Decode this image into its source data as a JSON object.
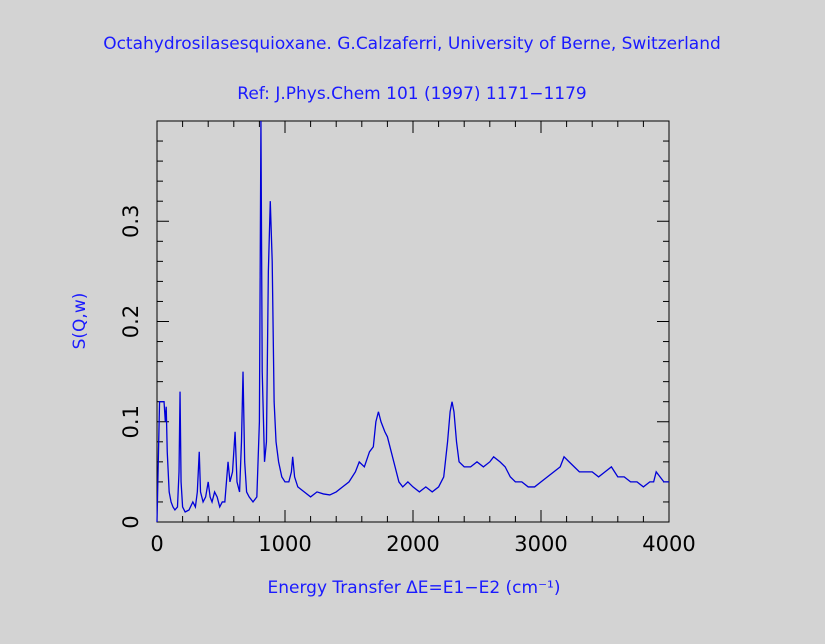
{
  "chart_data": {
    "type": "line",
    "title": "Octahydrosilasesquioxane. G.Calzaferri, University of Berne, Switzerland",
    "subtitle": "Ref: J.Phys.Chem 101 (1997) 1171−1179",
    "xlabel": "Energy Transfer ΔE=E1−E2 (cm⁻¹)",
    "ylabel": "S(Q,w)",
    "color": "#0000d8",
    "xlim": [
      0,
      4000
    ],
    "ylim": [
      0,
      0.4
    ],
    "xticks": [
      0,
      1000,
      2000,
      3000,
      4000
    ],
    "yticks": [
      0,
      0.1,
      0.2,
      0.3
    ],
    "xminorticks": [
      200,
      400,
      600,
      800,
      1200,
      1400,
      1600,
      1800,
      2200,
      2400,
      2600,
      2800,
      3200,
      3400,
      3600,
      3800
    ],
    "yminorticks": [
      0.02,
      0.04,
      0.06,
      0.08,
      0.12,
      0.14,
      0.16,
      0.18,
      0.22,
      0.24,
      0.26,
      0.28,
      0.32,
      0.34,
      0.36,
      0.38
    ],
    "x": [
      0,
      10,
      20,
      40,
      55,
      65,
      72,
      80,
      95,
      110,
      125,
      140,
      160,
      172,
      180,
      188,
      200,
      220,
      250,
      280,
      300,
      315,
      330,
      340,
      360,
      380,
      400,
      415,
      430,
      450,
      470,
      490,
      510,
      530,
      555,
      570,
      590,
      610,
      625,
      645,
      660,
      672,
      685,
      700,
      720,
      750,
      780,
      800,
      812,
      822,
      840,
      855,
      870,
      885,
      900,
      915,
      930,
      950,
      975,
      1000,
      1030,
      1050,
      1060,
      1075,
      1100,
      1150,
      1200,
      1250,
      1300,
      1350,
      1400,
      1450,
      1500,
      1550,
      1580,
      1620,
      1660,
      1690,
      1710,
      1730,
      1750,
      1780,
      1800,
      1830,
      1860,
      1890,
      1920,
      1960,
      2000,
      2050,
      2100,
      2150,
      2200,
      2240,
      2270,
      2290,
      2305,
      2320,
      2340,
      2360,
      2400,
      2450,
      2500,
      2550,
      2600,
      2630,
      2680,
      2720,
      2760,
      2800,
      2850,
      2900,
      2950,
      3000,
      3050,
      3100,
      3150,
      3180,
      3220,
      3260,
      3300,
      3350,
      3400,
      3450,
      3500,
      3550,
      3600,
      3650,
      3700,
      3750,
      3800,
      3850,
      3880,
      3900,
      3930,
      3960,
      4000
    ],
    "values": [
      0,
      0.06,
      0.12,
      0.12,
      0.12,
      0.1,
      0.115,
      0.07,
      0.03,
      0.02,
      0.015,
      0.012,
      0.015,
      0.05,
      0.13,
      0.04,
      0.015,
      0.01,
      0.012,
      0.02,
      0.015,
      0.03,
      0.07,
      0.03,
      0.02,
      0.025,
      0.04,
      0.025,
      0.02,
      0.03,
      0.025,
      0.015,
      0.02,
      0.02,
      0.06,
      0.04,
      0.05,
      0.09,
      0.04,
      0.03,
      0.08,
      0.15,
      0.06,
      0.03,
      0.025,
      0.02,
      0.025,
      0.1,
      0.4,
      0.15,
      0.06,
      0.08,
      0.25,
      0.32,
      0.26,
      0.12,
      0.08,
      0.06,
      0.045,
      0.04,
      0.04,
      0.05,
      0.065,
      0.045,
      0.035,
      0.03,
      0.025,
      0.03,
      0.028,
      0.027,
      0.03,
      0.035,
      0.04,
      0.05,
      0.06,
      0.055,
      0.07,
      0.075,
      0.1,
      0.11,
      0.1,
      0.09,
      0.085,
      0.07,
      0.055,
      0.04,
      0.035,
      0.04,
      0.035,
      0.03,
      0.035,
      0.03,
      0.035,
      0.045,
      0.08,
      0.11,
      0.12,
      0.11,
      0.08,
      0.06,
      0.055,
      0.055,
      0.06,
      0.055,
      0.06,
      0.065,
      0.06,
      0.055,
      0.045,
      0.04,
      0.04,
      0.035,
      0.035,
      0.04,
      0.045,
      0.05,
      0.055,
      0.065,
      0.06,
      0.055,
      0.05,
      0.05,
      0.05,
      0.045,
      0.05,
      0.055,
      0.045,
      0.045,
      0.04,
      0.04,
      0.035,
      0.04,
      0.04,
      0.05,
      0.045,
      0.04,
      0.04
    ]
  }
}
